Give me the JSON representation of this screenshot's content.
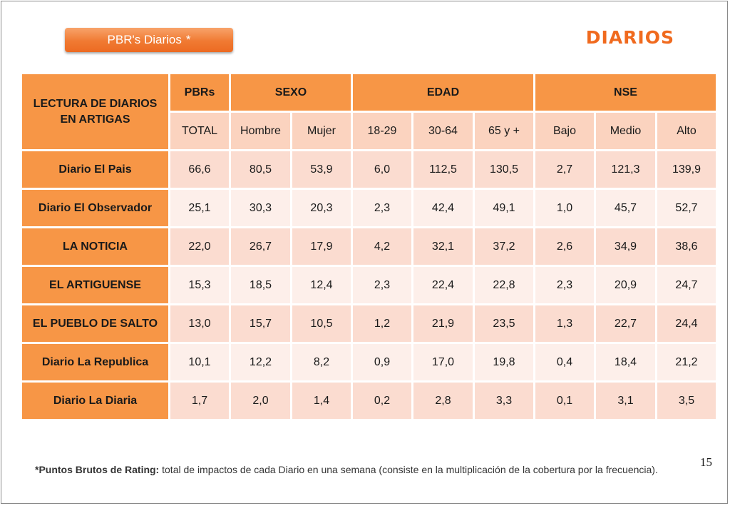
{
  "tag": {
    "label": "PBR's Diarios",
    "star": "*"
  },
  "title": "DIARIOS",
  "table": {
    "corner_header": "LECTURA DE DIARIOS EN ARTIGAS",
    "groups": [
      "PBRs",
      "SEXO",
      "EDAD",
      "NSE"
    ],
    "columns": [
      "TOTAL",
      "Hombre",
      "Mujer",
      "18-29",
      "30-64",
      "65 y +",
      "Bajo",
      "Medio",
      "Alto"
    ],
    "rows": [
      {
        "label": "Diario El Pais",
        "values": [
          "66,6",
          "80,5",
          "53,9",
          "6,0",
          "112,5",
          "130,5",
          "2,7",
          "121,3",
          "139,9"
        ]
      },
      {
        "label": "Diario El Observador",
        "values": [
          "25,1",
          "30,3",
          "20,3",
          "2,3",
          "42,4",
          "49,1",
          "1,0",
          "45,7",
          "52,7"
        ]
      },
      {
        "label": "LA NOTICIA",
        "values": [
          "22,0",
          "26,7",
          "17,9",
          "4,2",
          "32,1",
          "37,2",
          "2,6",
          "34,9",
          "38,6"
        ]
      },
      {
        "label": "EL ARTIGUENSE",
        "values": [
          "15,3",
          "18,5",
          "12,4",
          "2,3",
          "22,4",
          "22,8",
          "2,3",
          "20,9",
          "24,7"
        ]
      },
      {
        "label": "EL PUEBLO DE SALTO",
        "values": [
          "13,0",
          "15,7",
          "10,5",
          "1,2",
          "21,9",
          "23,5",
          "1,3",
          "22,7",
          "24,4"
        ]
      },
      {
        "label": "Diario La Republica",
        "values": [
          "10,1",
          "12,2",
          "8,2",
          "0,9",
          "17,0",
          "19,8",
          "0,4",
          "18,4",
          "21,2"
        ]
      },
      {
        "label": "Diario La Diaria",
        "values": [
          "1,7",
          "2,0",
          "1,4",
          "0,2",
          "2,8",
          "3,3",
          "0,1",
          "3,1",
          "3,5"
        ]
      }
    ]
  },
  "footnote": {
    "term": "*Puntos Brutos de Rating:",
    "text": " total de impactos de cada Diario en una semana (consiste en la multiplicación de la cobertura por la frecuencia)."
  },
  "page_number": "15",
  "colors": {
    "accent": "#f79646",
    "title": "#f06a1e",
    "row_odd": "#fbdcd0",
    "row_even": "#fdefea"
  }
}
